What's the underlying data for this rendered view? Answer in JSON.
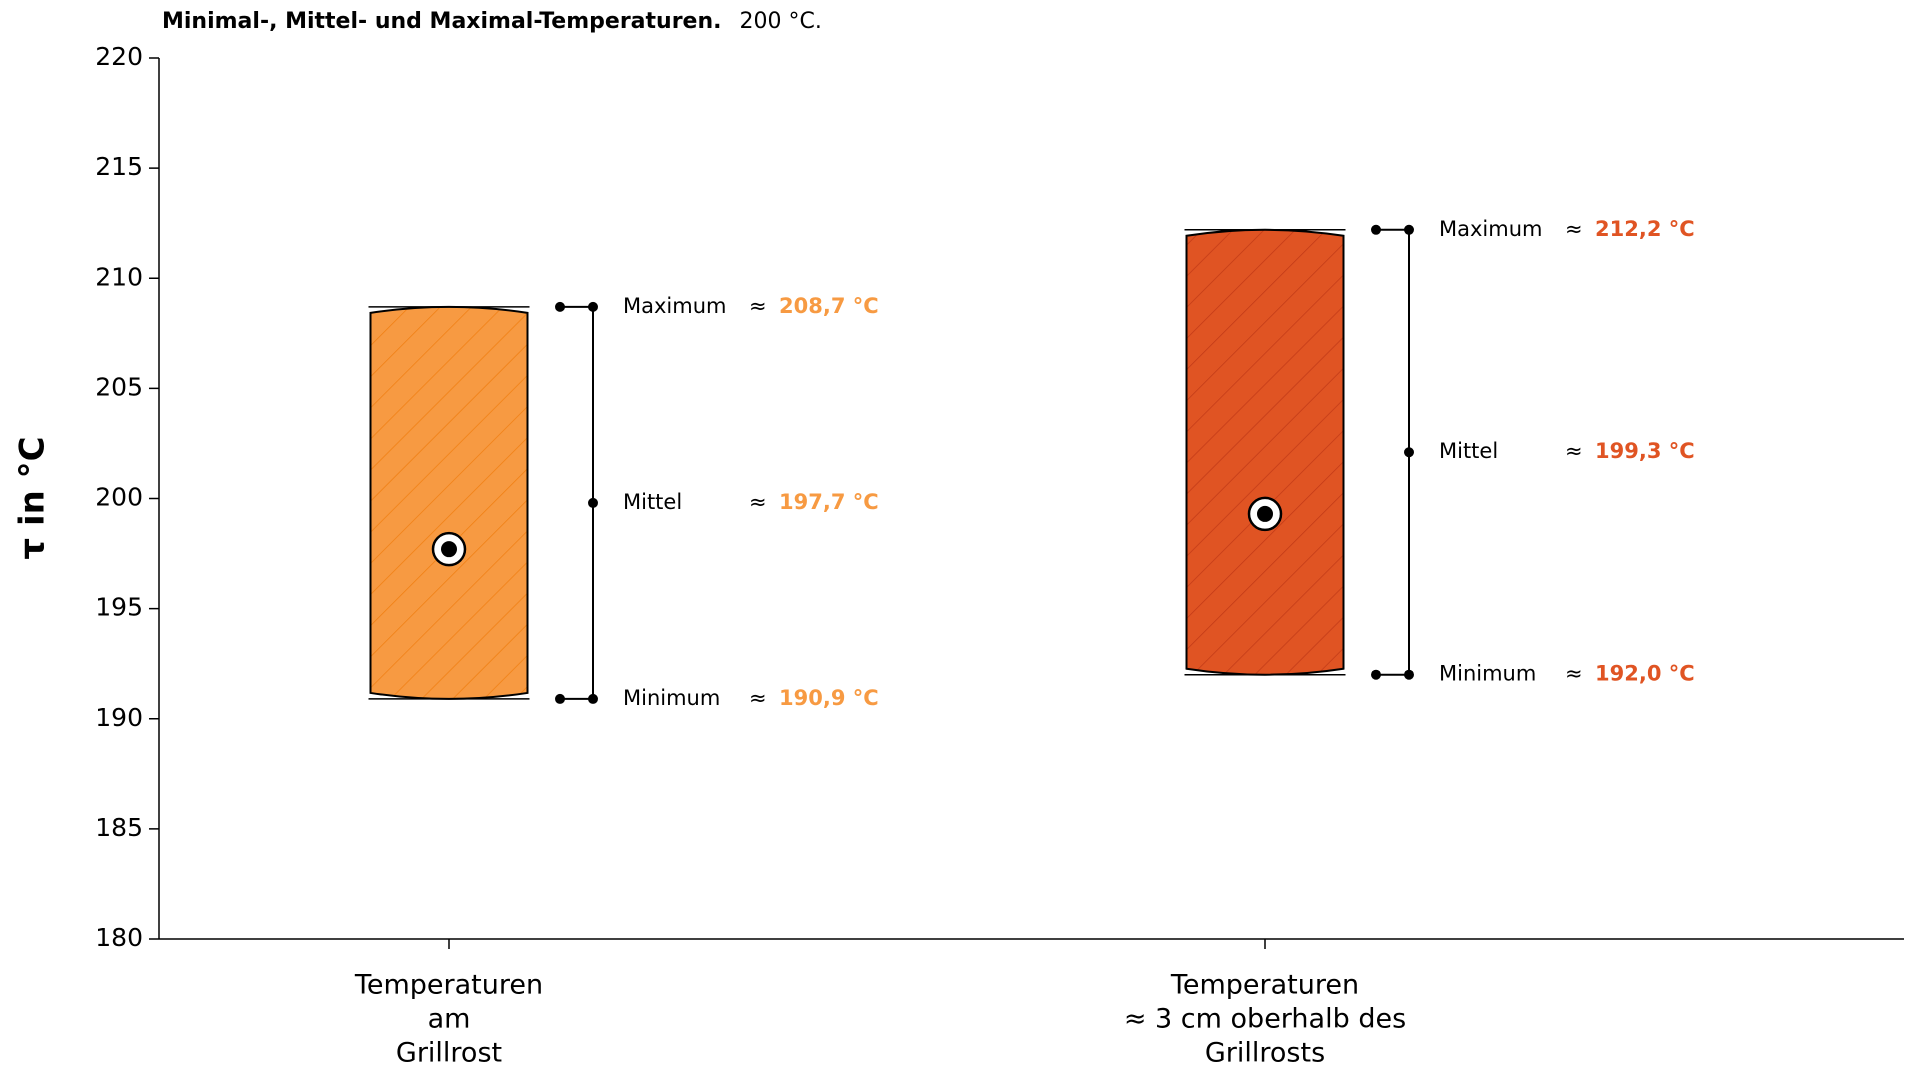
{
  "chart_data": {
    "type": "range",
    "title": "Minimal-, Mittel- und Maximal-Temperaturen.",
    "subtitle": "200 °C.",
    "y_label": "τ in °C",
    "categories": [
      [
        "Temperaturen",
        "am",
        "Grillrost"
      ],
      [
        "Temperaturen",
        "≈ 3 cm oberhalb des",
        "Grillrosts"
      ]
    ],
    "colors": [
      "#f79a42",
      "#e05423"
    ],
    "hatch_colors": [
      "#f07f12",
      "#c23a17"
    ],
    "approx_symbol": "≈",
    "series": [
      {
        "name": "Minimum",
        "values": [
          190.9,
          192.0
        ],
        "value_labels": [
          "190,9 °C",
          "192,0 °C"
        ]
      },
      {
        "name": "Mittel",
        "values": [
          197.7,
          199.3
        ],
        "value_labels": [
          "197,7 °C",
          "199,3 °C"
        ]
      },
      {
        "name": "Maximum",
        "values": [
          208.7,
          212.2
        ],
        "value_labels": [
          "208,7 °C",
          "212,2 °C"
        ]
      }
    ],
    "ylim": [
      180,
      220
    ],
    "yticks": [
      180,
      185,
      190,
      195,
      200,
      205,
      210,
      215,
      220
    ]
  }
}
